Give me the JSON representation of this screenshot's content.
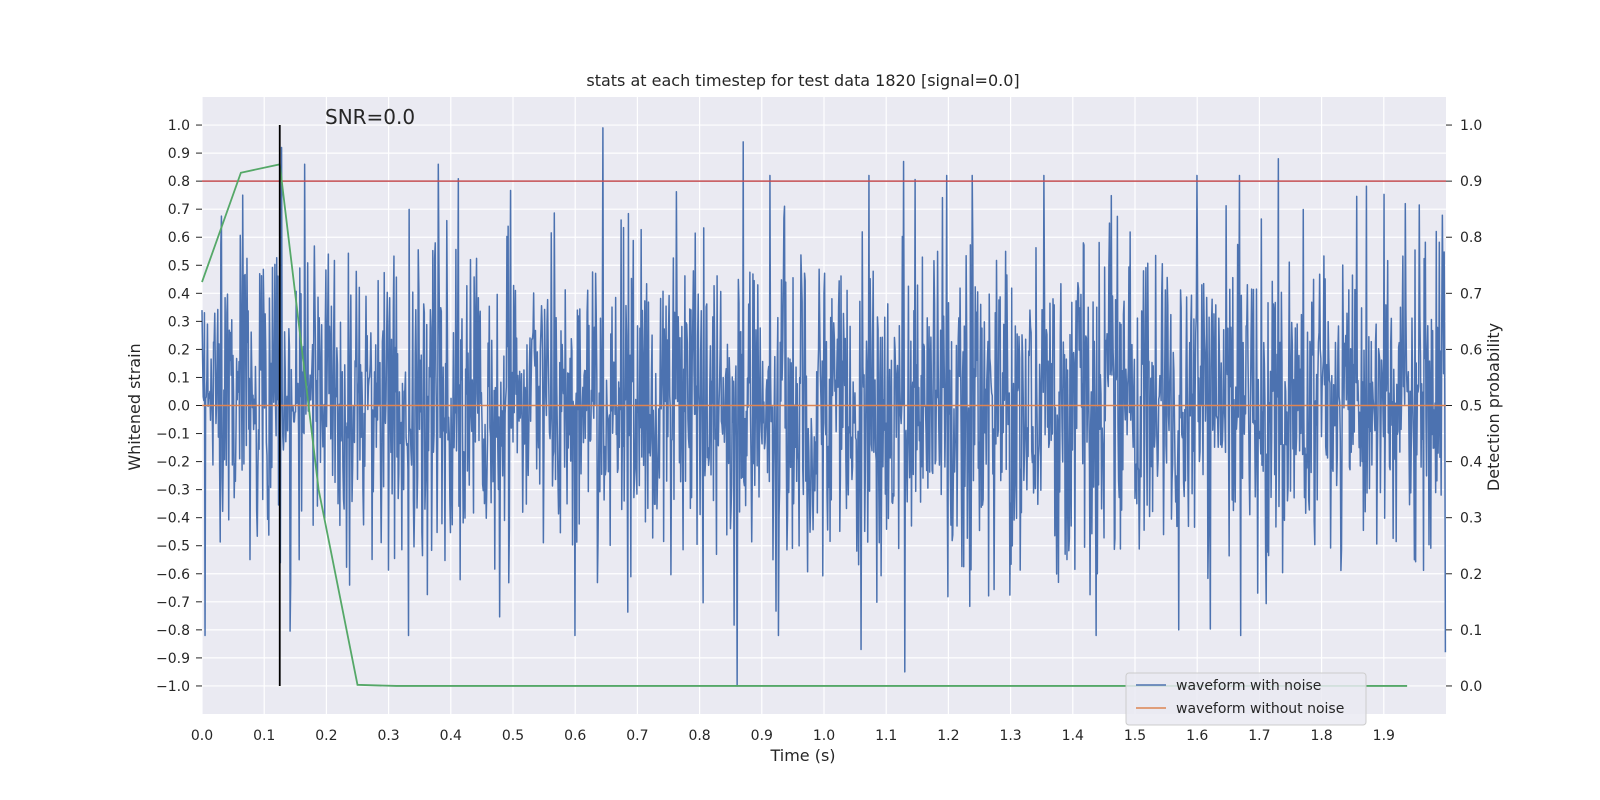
{
  "chart_data": {
    "type": "line",
    "title": "stats at each timestep for test data 1820 [signal=0.0]",
    "xlabel": "Time (s)",
    "ylabel": "Whitened strain",
    "y2label": "Detection probability",
    "xlim": [
      0.0,
      2.0
    ],
    "ylim": [
      -1.1,
      1.1
    ],
    "y2lim": [
      -0.05,
      1.05
    ],
    "x_ticks": [
      "0.0",
      "0.1",
      "0.2",
      "0.3",
      "0.4",
      "0.5",
      "0.6",
      "0.7",
      "0.8",
      "0.9",
      "1.0",
      "1.1",
      "1.2",
      "1.3",
      "1.4",
      "1.5",
      "1.6",
      "1.7",
      "1.8",
      "1.9"
    ],
    "y_ticks": [
      "1.0",
      "0.9",
      "0.8",
      "0.7",
      "0.6",
      "0.5",
      "0.4",
      "0.3",
      "0.2",
      "0.1",
      "0.0",
      "−0.1",
      "−0.2",
      "−0.3",
      "−0.4",
      "−0.5",
      "−0.6",
      "−0.7",
      "−0.8",
      "−0.9",
      "−1.0"
    ],
    "y2_ticks": [
      "1.0",
      "0.9",
      "0.8",
      "0.7",
      "0.6",
      "0.5",
      "0.4",
      "0.3",
      "0.2",
      "0.1",
      "0.0"
    ],
    "grid": true,
    "legend_position": "lower-right",
    "annotation": "SNR=0.0",
    "series": [
      {
        "name": "waveform with noise",
        "color": "#4c72b0",
        "axis": "left",
        "sample_rate": 1024,
        "noise_amplitude": 0.28,
        "peaks": [
          [
            0.065,
            0.75
          ],
          [
            0.128,
            0.92
          ],
          [
            0.165,
            0.86
          ],
          [
            0.38,
            0.86
          ],
          [
            0.645,
            0.99
          ],
          [
            0.86,
            -1.0
          ],
          [
            0.87,
            0.94
          ],
          [
            1.06,
            -0.87
          ],
          [
            1.13,
            -0.95
          ],
          [
            1.128,
            0.87
          ],
          [
            1.57,
            -0.8
          ],
          [
            1.73,
            0.88
          ],
          [
            1.935,
            0.72
          ],
          [
            2.0,
            -0.88
          ]
        ]
      },
      {
        "name": "waveform without noise",
        "color": "#dd8452",
        "axis": "left",
        "x": [
          0.0,
          2.0
        ],
        "y": [
          0.0,
          0.0
        ]
      },
      {
        "color": "#55a868",
        "axis": "right",
        "x": [
          0.0,
          0.0625,
          0.125,
          0.1875,
          0.25,
          0.3125,
          1.9375
        ],
        "y": [
          0.72,
          0.915,
          0.93,
          0.35,
          0.002,
          0.0,
          0.0
        ]
      }
    ],
    "hlines": [
      {
        "y": 0.8,
        "color": "#c44e52",
        "axis": "left"
      }
    ],
    "vlines": [
      {
        "x": 0.125,
        "y_from": -1.0,
        "y_to": 1.0,
        "color": "#000000",
        "axis": "left"
      }
    ]
  }
}
